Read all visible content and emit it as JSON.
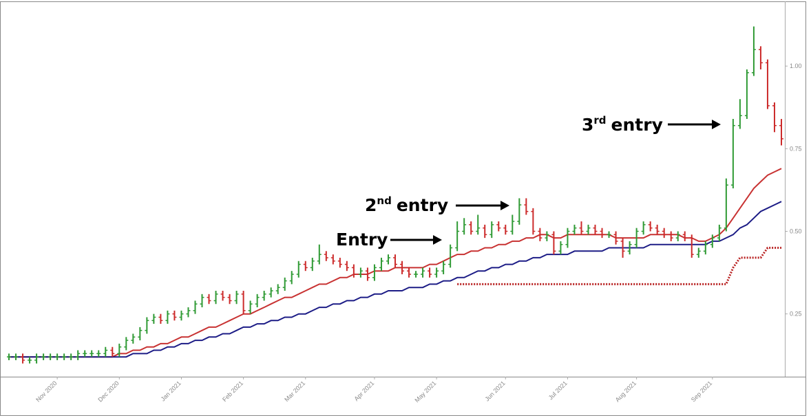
{
  "chart_data": {
    "type": "ohlc",
    "categories": [
      null,
      null,
      null,
      null,
      null,
      null,
      null,
      "Nov 2020",
      null,
      null,
      null,
      null,
      null,
      null,
      null,
      null,
      "Dec 2020",
      null,
      null,
      null,
      null,
      null,
      null,
      null,
      null,
      "Jan 2021",
      null,
      null,
      null,
      null,
      null,
      null,
      null,
      null,
      "Feb 2021",
      null,
      null,
      null,
      null,
      null,
      null,
      null,
      null,
      "Mar 2021",
      null,
      null,
      null,
      null,
      null,
      null,
      null,
      null,
      null,
      "Apr 2021",
      null,
      null,
      null,
      null,
      null,
      null,
      null,
      null,
      "May 2021",
      null,
      null,
      null,
      null,
      null,
      null,
      null,
      null,
      null,
      "Jun 2021",
      null,
      null,
      null,
      null,
      null,
      null,
      null,
      null,
      "Jul 2021",
      null,
      null,
      null,
      null,
      null,
      null,
      null,
      null,
      null,
      "Aug 2021",
      null,
      null,
      null,
      null,
      null,
      null,
      null,
      null,
      null,
      null,
      "Sep 2021",
      null,
      null,
      null,
      null,
      null,
      null,
      null,
      null,
      null,
      null
    ],
    "open": [
      0.12,
      0.12,
      0.12,
      0.11,
      0.11,
      0.12,
      0.12,
      0.12,
      0.12,
      0.12,
      0.12,
      0.13,
      0.13,
      0.13,
      0.13,
      0.14,
      0.13,
      0.15,
      0.17,
      0.18,
      0.2,
      0.23,
      0.24,
      0.23,
      0.25,
      0.24,
      0.25,
      0.26,
      0.28,
      0.3,
      0.29,
      0.31,
      0.3,
      0.29,
      0.31,
      0.26,
      0.28,
      0.3,
      0.31,
      0.32,
      0.33,
      0.35,
      0.37,
      0.4,
      0.39,
      0.41,
      0.43,
      0.42,
      0.41,
      0.4,
      0.39,
      0.37,
      0.38,
      0.36,
      0.39,
      0.41,
      0.42,
      0.4,
      0.38,
      0.37,
      0.37,
      0.38,
      0.37,
      0.38,
      0.4,
      0.45,
      0.5,
      0.52,
      0.5,
      0.51,
      0.49,
      0.52,
      0.51,
      0.5,
      0.53,
      0.58,
      0.56,
      0.5,
      0.48,
      0.49,
      0.44,
      0.46,
      0.5,
      0.51,
      0.5,
      0.51,
      0.5,
      0.49,
      0.49,
      0.47,
      0.44,
      0.46,
      0.5,
      0.52,
      0.51,
      0.5,
      0.49,
      0.48,
      0.49,
      0.48,
      0.43,
      0.44,
      0.46,
      0.48,
      0.51,
      0.64,
      0.82,
      0.85,
      0.98,
      1.05,
      1.01,
      0.88,
      0.82
    ],
    "high": [
      0.13,
      0.13,
      0.13,
      0.12,
      0.13,
      0.13,
      0.13,
      0.13,
      0.13,
      0.13,
      0.14,
      0.14,
      0.14,
      0.14,
      0.15,
      0.15,
      0.16,
      0.18,
      0.19,
      0.21,
      0.24,
      0.25,
      0.25,
      0.26,
      0.26,
      0.26,
      0.27,
      0.29,
      0.31,
      0.31,
      0.32,
      0.32,
      0.31,
      0.32,
      0.32,
      0.29,
      0.31,
      0.32,
      0.33,
      0.34,
      0.36,
      0.38,
      0.41,
      0.41,
      0.42,
      0.46,
      0.44,
      0.43,
      0.42,
      0.41,
      0.4,
      0.39,
      0.39,
      0.4,
      0.42,
      0.43,
      0.43,
      0.41,
      0.39,
      0.38,
      0.39,
      0.39,
      0.39,
      0.41,
      0.46,
      0.53,
      0.54,
      0.53,
      0.55,
      0.52,
      0.53,
      0.53,
      0.52,
      0.55,
      0.6,
      0.6,
      0.57,
      0.51,
      0.5,
      0.5,
      0.47,
      0.51,
      0.52,
      0.53,
      0.52,
      0.52,
      0.51,
      0.5,
      0.5,
      0.48,
      0.47,
      0.51,
      0.53,
      0.53,
      0.52,
      0.51,
      0.5,
      0.5,
      0.5,
      0.49,
      0.45,
      0.47,
      0.49,
      0.52,
      0.66,
      0.84,
      0.9,
      0.99,
      1.12,
      1.06,
      1.02,
      0.89,
      0.84
    ],
    "low": [
      0.11,
      0.11,
      0.1,
      0.1,
      0.1,
      0.11,
      0.11,
      0.11,
      0.11,
      0.11,
      0.11,
      0.12,
      0.12,
      0.12,
      0.12,
      0.12,
      0.12,
      0.14,
      0.16,
      0.17,
      0.19,
      0.22,
      0.22,
      0.22,
      0.23,
      0.23,
      0.24,
      0.25,
      0.27,
      0.28,
      0.28,
      0.29,
      0.28,
      0.28,
      0.25,
      0.25,
      0.27,
      0.29,
      0.3,
      0.31,
      0.32,
      0.34,
      0.36,
      0.38,
      0.38,
      0.4,
      0.41,
      0.4,
      0.39,
      0.38,
      0.36,
      0.36,
      0.35,
      0.35,
      0.38,
      0.4,
      0.39,
      0.37,
      0.36,
      0.36,
      0.36,
      0.36,
      0.36,
      0.37,
      0.39,
      0.44,
      0.49,
      0.49,
      0.49,
      0.48,
      0.48,
      0.5,
      0.49,
      0.49,
      0.52,
      0.55,
      0.49,
      0.47,
      0.47,
      0.43,
      0.43,
      0.45,
      0.49,
      0.49,
      0.49,
      0.49,
      0.48,
      0.48,
      0.46,
      0.42,
      0.43,
      0.45,
      0.49,
      0.5,
      0.49,
      0.48,
      0.47,
      0.47,
      0.47,
      0.42,
      0.42,
      0.43,
      0.45,
      0.47,
      0.5,
      0.63,
      0.81,
      0.84,
      0.97,
      0.99,
      0.87,
      0.8,
      0.76
    ],
    "close": [
      0.12,
      0.12,
      0.11,
      0.11,
      0.12,
      0.12,
      0.12,
      0.12,
      0.12,
      0.12,
      0.13,
      0.13,
      0.13,
      0.13,
      0.14,
      0.13,
      0.15,
      0.17,
      0.18,
      0.2,
      0.23,
      0.24,
      0.23,
      0.25,
      0.24,
      0.25,
      0.26,
      0.28,
      0.3,
      0.29,
      0.31,
      0.3,
      0.29,
      0.31,
      0.26,
      0.28,
      0.3,
      0.31,
      0.32,
      0.33,
      0.35,
      0.37,
      0.4,
      0.39,
      0.41,
      0.43,
      0.42,
      0.41,
      0.4,
      0.39,
      0.37,
      0.38,
      0.36,
      0.39,
      0.41,
      0.42,
      0.4,
      0.38,
      0.37,
      0.37,
      0.38,
      0.37,
      0.38,
      0.4,
      0.45,
      0.5,
      0.52,
      0.5,
      0.51,
      0.49,
      0.52,
      0.51,
      0.5,
      0.53,
      0.58,
      0.56,
      0.5,
      0.48,
      0.49,
      0.44,
      0.46,
      0.5,
      0.51,
      0.5,
      0.51,
      0.5,
      0.49,
      0.49,
      0.47,
      0.44,
      0.46,
      0.5,
      0.52,
      0.51,
      0.5,
      0.49,
      0.48,
      0.49,
      0.48,
      0.43,
      0.44,
      0.46,
      0.48,
      0.51,
      0.64,
      0.82,
      0.85,
      0.98,
      1.05,
      1.01,
      0.88,
      0.82,
      0.78
    ],
    "up_color": "#2f9a34",
    "down_color": "#cc2a2a",
    "overlays": [
      {
        "color": "#c83232",
        "values": [
          0.12,
          0.12,
          0.12,
          0.12,
          0.12,
          0.12,
          0.12,
          0.12,
          0.12,
          0.12,
          0.12,
          0.12,
          0.12,
          0.12,
          0.12,
          0.12,
          0.13,
          0.13,
          0.14,
          0.14,
          0.15,
          0.15,
          0.16,
          0.16,
          0.17,
          0.18,
          0.18,
          0.19,
          0.2,
          0.21,
          0.21,
          0.22,
          0.23,
          0.24,
          0.25,
          0.25,
          0.26,
          0.27,
          0.28,
          0.29,
          0.3,
          0.3,
          0.31,
          0.32,
          0.33,
          0.34,
          0.34,
          0.35,
          0.36,
          0.36,
          0.37,
          0.37,
          0.37,
          0.38,
          0.38,
          0.38,
          0.39,
          0.39,
          0.39,
          0.39,
          0.39,
          0.4,
          0.4,
          0.41,
          0.42,
          0.43,
          0.43,
          0.44,
          0.44,
          0.45,
          0.45,
          0.46,
          0.46,
          0.47,
          0.47,
          0.48,
          0.48,
          0.49,
          0.49,
          0.48,
          0.48,
          0.49,
          0.49,
          0.49,
          0.49,
          0.49,
          0.49,
          0.49,
          0.48,
          0.48,
          0.48,
          0.48,
          0.48,
          0.49,
          0.49,
          0.49,
          0.49,
          0.49,
          0.48,
          0.48,
          0.47,
          0.47,
          0.48,
          0.49,
          0.51,
          0.54,
          0.57,
          0.6,
          0.63,
          0.65,
          0.67,
          0.68,
          0.69
        ]
      },
      {
        "color": "#1c1c86",
        "values": [
          0.12,
          0.12,
          0.12,
          0.12,
          0.12,
          0.12,
          0.12,
          0.12,
          0.12,
          0.12,
          0.12,
          0.12,
          0.12,
          0.12,
          0.12,
          0.12,
          0.12,
          0.12,
          0.13,
          0.13,
          0.13,
          0.14,
          0.14,
          0.15,
          0.15,
          0.16,
          0.16,
          0.17,
          0.17,
          0.18,
          0.18,
          0.19,
          0.19,
          0.2,
          0.21,
          0.21,
          0.22,
          0.22,
          0.23,
          0.23,
          0.24,
          0.24,
          0.25,
          0.25,
          0.26,
          0.27,
          0.27,
          0.28,
          0.28,
          0.29,
          0.29,
          0.3,
          0.3,
          0.31,
          0.31,
          0.32,
          0.32,
          0.32,
          0.33,
          0.33,
          0.33,
          0.34,
          0.34,
          0.35,
          0.35,
          0.36,
          0.36,
          0.37,
          0.38,
          0.38,
          0.39,
          0.39,
          0.4,
          0.4,
          0.41,
          0.41,
          0.42,
          0.42,
          0.43,
          0.43,
          0.43,
          0.43,
          0.44,
          0.44,
          0.44,
          0.44,
          0.44,
          0.45,
          0.45,
          0.45,
          0.45,
          0.45,
          0.45,
          0.46,
          0.46,
          0.46,
          0.46,
          0.46,
          0.46,
          0.46,
          0.46,
          0.46,
          0.47,
          0.47,
          0.48,
          0.49,
          0.51,
          0.52,
          0.54,
          0.56,
          0.57,
          0.58,
          0.59
        ]
      }
    ],
    "stop_line": {
      "color": "#b82020",
      "values": [
        null,
        null,
        null,
        null,
        null,
        null,
        null,
        null,
        null,
        null,
        null,
        null,
        null,
        null,
        null,
        null,
        null,
        null,
        null,
        null,
        null,
        null,
        null,
        null,
        null,
        null,
        null,
        null,
        null,
        null,
        null,
        null,
        null,
        null,
        null,
        null,
        null,
        null,
        null,
        null,
        null,
        null,
        null,
        null,
        null,
        null,
        null,
        null,
        null,
        null,
        null,
        null,
        null,
        null,
        null,
        null,
        null,
        null,
        null,
        null,
        null,
        null,
        null,
        null,
        null,
        0.34,
        0.34,
        0.34,
        0.34,
        0.34,
        0.34,
        0.34,
        0.34,
        0.34,
        0.34,
        0.34,
        0.34,
        0.34,
        0.34,
        0.34,
        0.34,
        0.34,
        0.34,
        0.34,
        0.34,
        0.34,
        0.34,
        0.34,
        0.34,
        0.34,
        0.34,
        0.34,
        0.34,
        0.34,
        0.34,
        0.34,
        0.34,
        0.34,
        0.34,
        0.34,
        0.34,
        0.34,
        0.34,
        0.34,
        0.34,
        0.39,
        0.42,
        0.42,
        0.42,
        0.42,
        0.45,
        0.45,
        0.45
      ]
    },
    "ylim": [
      0.06,
      1.2
    ],
    "yticks": [
      0.25,
      {
        "value": 0.5,
        "label": "0.50"
      },
      0.75,
      {
        "value": 1,
        "label": "1.00"
      }
    ],
    "annotations": [
      {
        "text": "Entry"
      },
      {
        "number": "2",
        "superscript": "nd",
        "text": "entry"
      },
      {
        "number": "3",
        "superscript": "rd",
        "text": "entry"
      }
    ]
  }
}
